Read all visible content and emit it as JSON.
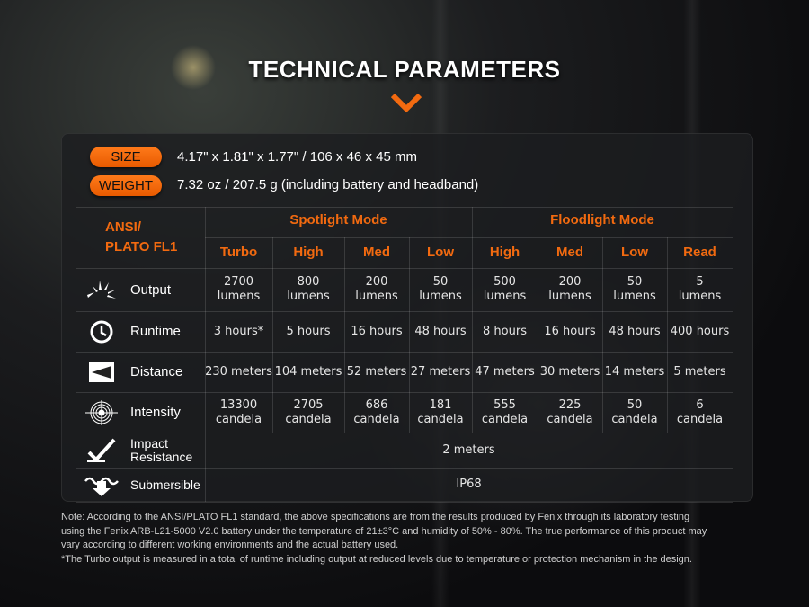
{
  "title": "TECHNICAL PARAMETERS",
  "accent": "#f26a10",
  "specs": {
    "size_label": "SIZE",
    "size_value": "4.17\" x 1.81\" x 1.77\" / 106 x 46 x 45 mm",
    "weight_label": "WEIGHT",
    "weight_value": "7.32 oz / 207.5 g (including battery and headband)"
  },
  "table": {
    "standard": "ANSI/\nPLATO FL1",
    "standard_line1": "ANSI/",
    "standard_line2": "PLATO FL1",
    "groups": [
      "Spotlight Mode",
      "Floodlight Mode"
    ],
    "modes": [
      "Turbo",
      "High",
      "Med",
      "Low",
      "High",
      "Med",
      "Low",
      "Read"
    ],
    "rows": [
      {
        "label": "Output",
        "icon": "output-burst-icon",
        "values": [
          [
            "2700",
            "lumens"
          ],
          [
            "800",
            "lumens"
          ],
          [
            "200",
            "lumens"
          ],
          [
            "50",
            "lumens"
          ],
          [
            "500",
            "lumens"
          ],
          [
            "200",
            "lumens"
          ],
          [
            "50",
            "lumens"
          ],
          [
            "5",
            "lumens"
          ]
        ]
      },
      {
        "label": "Runtime",
        "icon": "clock-icon",
        "values": [
          [
            "3 hours*"
          ],
          [
            "5 hours"
          ],
          [
            "16 hours"
          ],
          [
            "48 hours"
          ],
          [
            "8 hours"
          ],
          [
            "16 hours"
          ],
          [
            "48 hours"
          ],
          [
            "400 hours"
          ]
        ]
      },
      {
        "label": "Distance",
        "icon": "distance-beam-icon",
        "values": [
          [
            "230 meters"
          ],
          [
            "104 meters"
          ],
          [
            "52 meters"
          ],
          [
            "27 meters"
          ],
          [
            "47 meters"
          ],
          [
            "30 meters"
          ],
          [
            "14 meters"
          ],
          [
            "5 meters"
          ]
        ]
      },
      {
        "label": "Intensity",
        "icon": "target-icon",
        "values": [
          [
            "13300",
            "candela"
          ],
          [
            "2705",
            "candela"
          ],
          [
            "686",
            "candela"
          ],
          [
            "181",
            "candela"
          ],
          [
            "555",
            "candela"
          ],
          [
            "225",
            "candela"
          ],
          [
            "50",
            "candela"
          ],
          [
            "6",
            "candela"
          ]
        ]
      }
    ],
    "impact": {
      "label_line1": "Impact",
      "label_line2": "Resistance",
      "icon": "impact-check-icon",
      "value": "2 meters"
    },
    "submersible": {
      "label": "Submersible",
      "icon": "submersible-icon",
      "value": "IP68"
    }
  },
  "note": {
    "line1": "Note: According to the ANSI/PLATO FL1 standard, the above specifications are from the results produced by Fenix through its laboratory testing",
    "line2": "using the Fenix ARB-L21-5000 V2.0 battery under the temperature of 21±3°C and humidity of 50% - 80%. The true performance of this product may",
    "line3": "vary according to different working environments and the actual battery used.",
    "line4": "*The Turbo output is measured in a total of runtime including output at reduced levels due to temperature or protection mechanism in the design."
  }
}
